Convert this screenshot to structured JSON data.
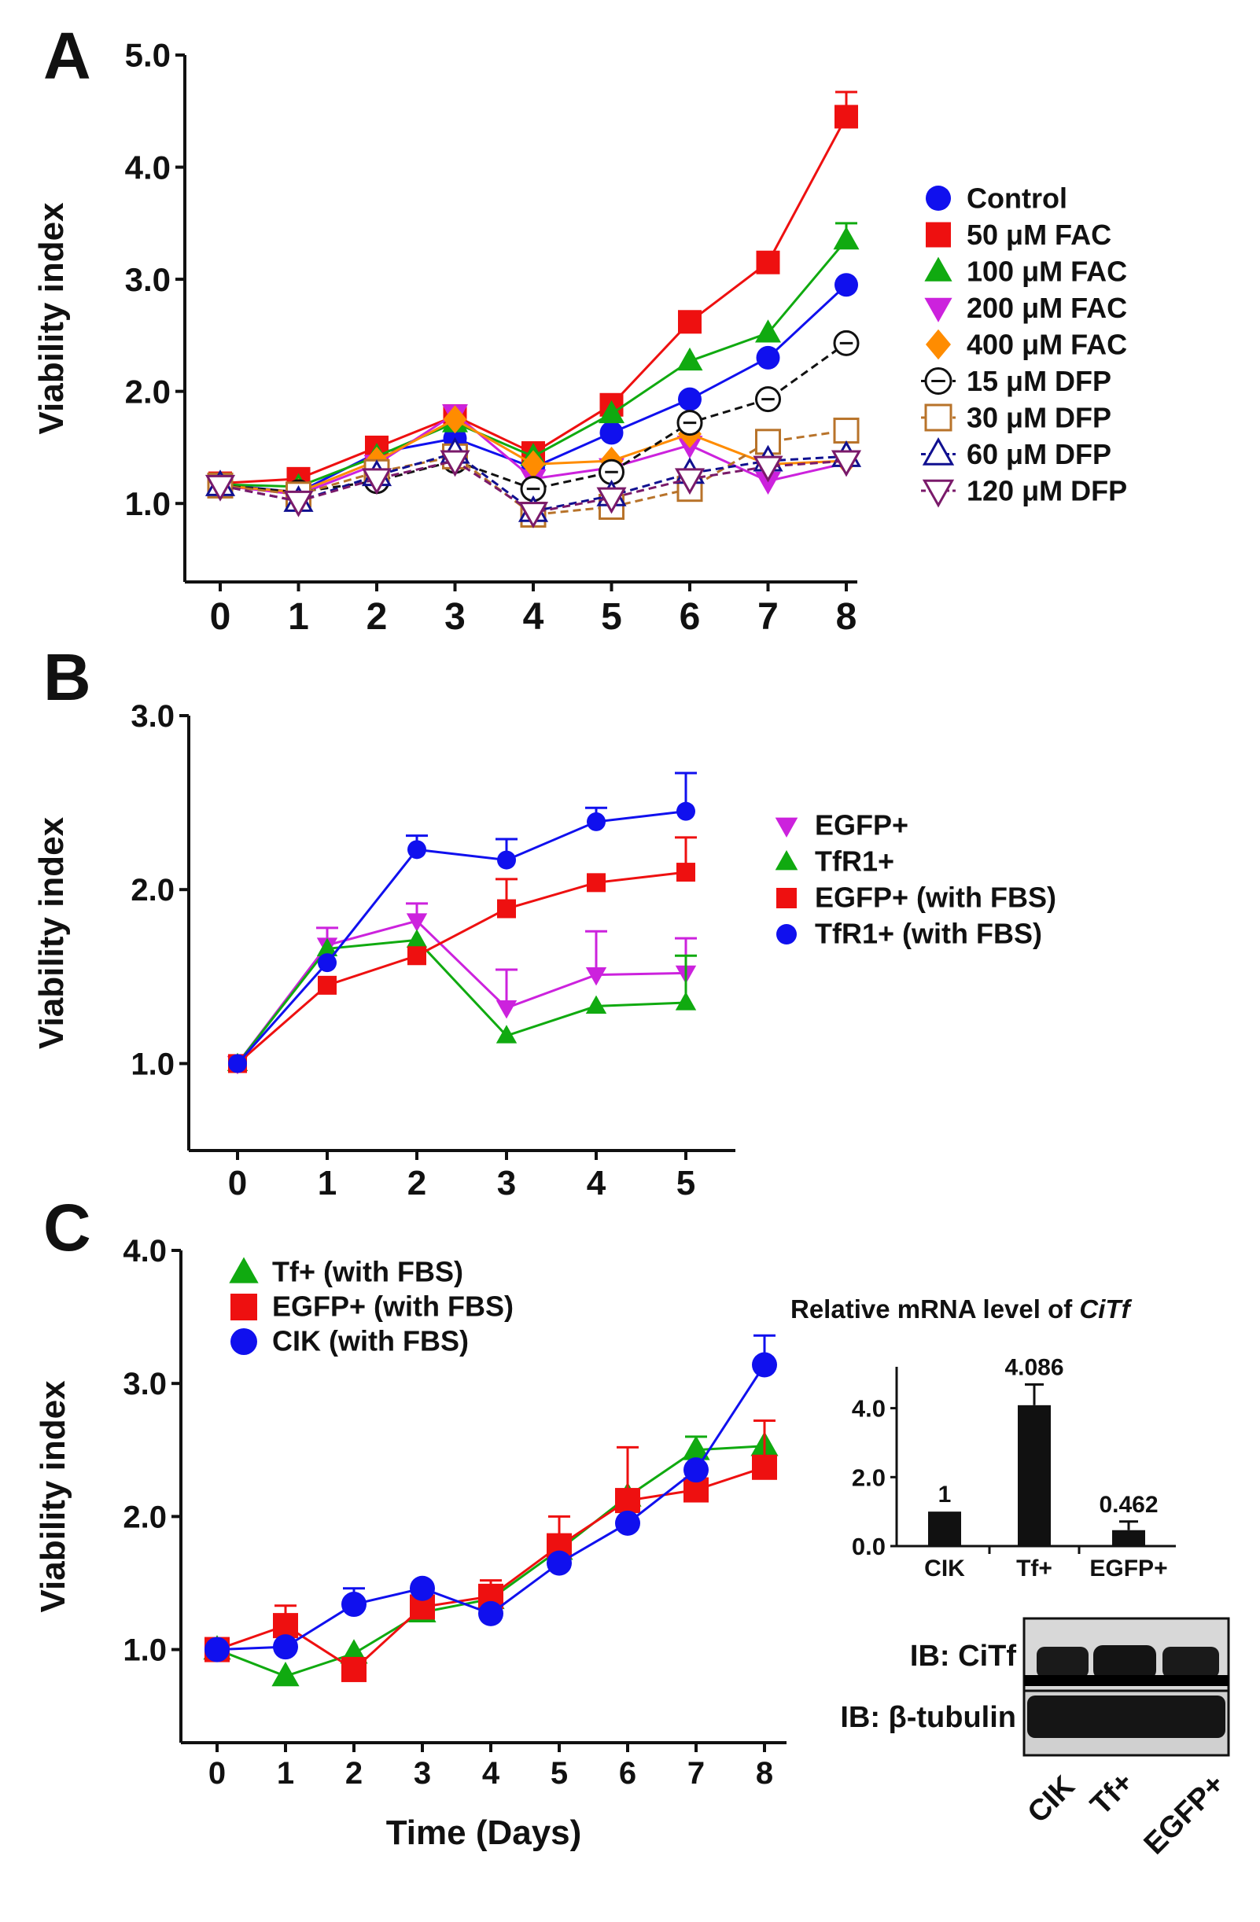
{
  "chart_data": [
    {
      "panel": "A",
      "type": "line",
      "ylabel": "Viability index",
      "xlabel": "",
      "ylim": [
        0.3,
        5.0
      ],
      "yticks": [
        "1.0",
        "2.0",
        "3.0",
        "4.0",
        "5.0"
      ],
      "x": [
        0,
        1,
        2,
        3,
        4,
        5,
        6,
        7,
        8
      ],
      "xticklabels": [
        "0",
        "1",
        "2",
        "3",
        "4",
        "5",
        "6",
        "7",
        "8"
      ],
      "legend_position": "right",
      "series": [
        {
          "name": "Control",
          "color": "#1010ee",
          "marker": "circle",
          "dashed": false,
          "values": [
            1.17,
            1.1,
            1.45,
            1.58,
            1.32,
            1.63,
            1.93,
            2.3,
            2.95
          ],
          "errors": [
            0,
            0,
            0,
            0,
            0,
            0,
            0,
            0,
            0
          ]
        },
        {
          "name": "50 μM FAC",
          "color": "#ee1010",
          "marker": "square",
          "dashed": false,
          "values": [
            1.18,
            1.22,
            1.5,
            1.78,
            1.45,
            1.88,
            2.62,
            3.15,
            4.45
          ],
          "errors": [
            0,
            0,
            0,
            0,
            0,
            0,
            0,
            0,
            0.22
          ]
        },
        {
          "name": "100 μM FAC",
          "color": "#10aa10",
          "marker": "triangle-up",
          "dashed": false,
          "values": [
            1.17,
            1.15,
            1.42,
            1.72,
            1.42,
            1.8,
            2.27,
            2.52,
            3.35
          ],
          "errors": [
            0,
            0,
            0,
            0,
            0,
            0,
            0,
            0,
            0.15
          ]
        },
        {
          "name": "200 μM FAC",
          "color": "#cc22dd",
          "marker": "triangle-down",
          "dashed": false,
          "values": [
            1.16,
            1.08,
            1.35,
            1.8,
            1.22,
            1.32,
            1.52,
            1.2,
            1.36
          ],
          "errors": [
            0,
            0,
            0,
            0,
            0,
            0,
            0,
            0,
            0
          ]
        },
        {
          "name": "400 μM FAC",
          "color": "#ff8c00",
          "marker": "diamond",
          "dashed": false,
          "values": [
            1.16,
            1.1,
            1.38,
            1.75,
            1.35,
            1.38,
            1.62,
            1.35,
            1.38
          ],
          "errors": [
            0,
            0,
            0,
            0,
            0,
            0,
            0,
            0,
            0
          ]
        },
        {
          "name": "15 μM DFP",
          "color": "#111111",
          "marker": "circle-open-dash",
          "dashed": true,
          "values": [
            1.16,
            1.1,
            1.2,
            1.38,
            1.13,
            1.28,
            1.72,
            1.93,
            2.43
          ],
          "errors": [
            0,
            0,
            0,
            0,
            0,
            0,
            0,
            0,
            0
          ]
        },
        {
          "name": "30 μM DFP",
          "color": "#b8732a",
          "marker": "square-open",
          "dashed": true,
          "values": [
            1.16,
            1.08,
            1.28,
            1.42,
            0.9,
            0.97,
            1.13,
            1.55,
            1.65
          ],
          "errors": [
            0,
            0,
            0,
            0,
            0,
            0,
            0,
            0,
            0
          ]
        },
        {
          "name": "60 μM DFP",
          "color": "#101090",
          "marker": "triangle-up-open",
          "dashed": true,
          "values": [
            1.16,
            1.02,
            1.25,
            1.45,
            0.93,
            1.07,
            1.27,
            1.38,
            1.42
          ],
          "errors": [
            0,
            0,
            0,
            0,
            0,
            0,
            0,
            0,
            0
          ]
        },
        {
          "name": "120 μM DFP",
          "color": "#7a1a6a",
          "marker": "triangle-down-open",
          "dashed": true,
          "values": [
            1.16,
            1.02,
            1.22,
            1.38,
            0.92,
            1.05,
            1.22,
            1.33,
            1.38
          ],
          "errors": [
            0,
            0,
            0,
            0,
            0,
            0,
            0,
            0,
            0
          ]
        }
      ]
    },
    {
      "panel": "B",
      "type": "line",
      "ylabel": "Viability index",
      "xlabel": "",
      "ylim": [
        0.5,
        3.0
      ],
      "yticks": [
        "1.0",
        "2.0",
        "3.0"
      ],
      "x": [
        0,
        1,
        2,
        3,
        4,
        5
      ],
      "xticklabels": [
        "0",
        "1",
        "2",
        "3",
        "4",
        "5"
      ],
      "legend_position": "right",
      "series": [
        {
          "name": "EGFP+",
          "color": "#cc22dd",
          "marker": "triangle-down",
          "dashed": false,
          "values": [
            1.0,
            1.68,
            1.82,
            1.32,
            1.51,
            1.52
          ],
          "errors": [
            0,
            0.1,
            0.1,
            0.22,
            0.25,
            0.2
          ]
        },
        {
          "name": "TfR1+",
          "color": "#10aa10",
          "marker": "triangle-up",
          "dashed": false,
          "values": [
            1.0,
            1.66,
            1.71,
            1.16,
            1.33,
            1.35
          ],
          "errors": [
            0,
            0,
            0,
            0,
            0,
            0.27
          ]
        },
        {
          "name": "EGFP+ (with FBS)",
          "color": "#ee1010",
          "marker": "square",
          "dashed": false,
          "values": [
            1.0,
            1.45,
            1.62,
            1.89,
            2.04,
            2.1
          ],
          "errors": [
            0,
            0,
            0,
            0.17,
            0,
            0.2
          ]
        },
        {
          "name": "TfR1+ (with FBS)",
          "color": "#1010ee",
          "marker": "circle",
          "dashed": false,
          "values": [
            1.0,
            1.58,
            2.23,
            2.17,
            2.39,
            2.45
          ],
          "errors": [
            0,
            0,
            0.08,
            0.12,
            0.08,
            0.22
          ]
        }
      ]
    },
    {
      "panel": "C",
      "type": "line",
      "ylabel": "Viability index",
      "xlabel": "Time (Days)",
      "ylim": [
        0.3,
        4.0
      ],
      "yticks": [
        "1.0",
        "2.0",
        "3.0",
        "4.0"
      ],
      "x": [
        0,
        1,
        2,
        3,
        4,
        5,
        6,
        7,
        8
      ],
      "xticklabels": [
        "0",
        "1",
        "2",
        "3",
        "4",
        "5",
        "6",
        "7",
        "8"
      ],
      "legend_position": "top-left",
      "series": [
        {
          "name": "Tf+ (with FBS)",
          "color": "#10aa10",
          "marker": "triangle-up",
          "dashed": false,
          "values": [
            1.0,
            0.8,
            0.97,
            1.28,
            1.38,
            1.75,
            2.15,
            2.5,
            2.53
          ],
          "errors": [
            0,
            0,
            0,
            0,
            0,
            0,
            0,
            0.1,
            0
          ]
        },
        {
          "name": "EGFP+ (with FBS)",
          "color": "#ee1010",
          "marker": "square",
          "dashed": false,
          "values": [
            1.0,
            1.18,
            0.85,
            1.32,
            1.4,
            1.78,
            2.12,
            2.2,
            2.37
          ],
          "errors": [
            0,
            0.15,
            0,
            0,
            0.12,
            0.22,
            0.4,
            0,
            0.35
          ]
        },
        {
          "name": "CIK (with FBS)",
          "color": "#1010ee",
          "marker": "circle",
          "dashed": false,
          "values": [
            1.0,
            1.02,
            1.34,
            1.46,
            1.27,
            1.65,
            1.95,
            2.35,
            3.14
          ],
          "errors": [
            0,
            0,
            0.12,
            0,
            0,
            0,
            0,
            0,
            0.22
          ]
        }
      ]
    },
    {
      "panel": "C-inset",
      "type": "bar",
      "title_prefix": "Relative mRNA level of ",
      "title_italic": "CiTf",
      "categories": [
        "CIK",
        "Tf+",
        "EGFP+"
      ],
      "values": [
        1,
        4.086,
        0.462
      ],
      "value_labels": [
        "1",
        "4.086",
        "0.462"
      ],
      "errors": [
        0,
        0.6,
        0.25
      ],
      "ylim": [
        0,
        5.2
      ],
      "yticks": [
        "0.0",
        "2.0",
        "4.0"
      ]
    }
  ],
  "panels": {
    "a": "A",
    "b": "B",
    "c": "C"
  },
  "blot": {
    "rows": [
      "IB: CiTf",
      "IB: β-tubulin"
    ],
    "lanes": [
      "CIK",
      "Tf+",
      "EGFP+"
    ]
  }
}
